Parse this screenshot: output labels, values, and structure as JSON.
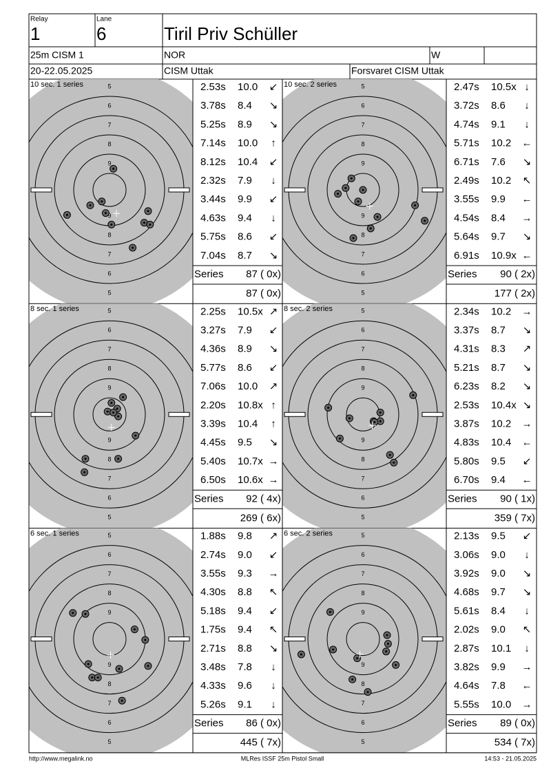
{
  "header": {
    "relay_label": "Relay",
    "relay": "1",
    "lane_label": "Lane",
    "lane": "6",
    "name": "Tiril Priv Schüller",
    "event": "25m CISM 1",
    "nation": "NOR",
    "gender": "W",
    "dates": "20-22.05.2025",
    "competition": "CISM Uttak",
    "club": "Forsvaret CISM Uttak"
  },
  "target": {
    "ring_labels": [
      "9",
      "8",
      "7",
      "6",
      "5"
    ]
  },
  "series_label": "Series",
  "panels": [
    {
      "title": "10 sec. 1 series",
      "times": [
        "2.53s",
        "3.78s",
        "5.25s",
        "7.14s",
        "8.12s",
        "2.32s",
        "3.44s",
        "4.63s",
        "5.75s",
        "7.04s"
      ],
      "scores": [
        "10.0",
        "8.4",
        "8.9",
        "10.0",
        "10.4",
        "7.9",
        "9.9",
        "9.4",
        "8.6",
        "8.7"
      ],
      "dirs": [
        "↙",
        "↘",
        "↘",
        "↑",
        "↙",
        "↓",
        "↙",
        "↓",
        "↙",
        "↘"
      ],
      "series": "87 ( 0x)",
      "total": "87 ( 0x)",
      "shots_x": [
        0.2,
        -1.0,
        -0.4,
        -0.2,
        -2.2,
        0.1,
        2.0,
        1.8,
        2.1,
        1.2
      ],
      "shots_y": [
        -1.1,
        0.8,
        0.6,
        1.2,
        1.3,
        1.8,
        1.1,
        1.7,
        1.8,
        3.0
      ]
    },
    {
      "title": "10 sec. 2 series",
      "times": [
        "2.47s",
        "3.72s",
        "4.74s",
        "5.71s",
        "6.71s",
        "2.49s",
        "3.55s",
        "4.54s",
        "5.64s",
        "6.91s"
      ],
      "scores": [
        "10.5x",
        "8.6",
        "9.1",
        "10.2",
        "7.6",
        "10.2",
        "9.9",
        "8.4",
        "9.7",
        "10.9x"
      ],
      "dirs": [
        "↓",
        "↓",
        "↓",
        "←",
        "↘",
        "↖",
        "←",
        "→",
        "↘",
        "←"
      ],
      "series": "90 ( 2x)",
      "total": "177 ( 2x)",
      "shots_x": [
        -0.6,
        -0.9,
        -1.3,
        0,
        -0.25,
        0.75,
        0.4,
        -0.5,
        2.7,
        3.2
      ],
      "shots_y": [
        -0.6,
        -0.1,
        0.2,
        0,
        0.6,
        1.4,
        2.0,
        2.5,
        0.8,
        1.6
      ]
    },
    {
      "title": "8 sec. 1 series",
      "times": [
        "2.25s",
        "3.27s",
        "4.36s",
        "5.77s",
        "7.06s",
        "2.20s",
        "3.39s",
        "4.45s",
        "5.40s",
        "6.50s"
      ],
      "scores": [
        "10.5x",
        "7.9",
        "8.9",
        "8.6",
        "10.0",
        "10.8x",
        "10.4",
        "9.5",
        "10.7x",
        "10.6x"
      ],
      "dirs": [
        "↗",
        "↙",
        "↘",
        "↙",
        "↗",
        "↑",
        "↑",
        "↘",
        "→",
        "→"
      ],
      "series": "92 ( 4x)",
      "total": "269 ( 6x)",
      "shots_x": [
        0.7,
        0.1,
        0.4,
        -0.1,
        0.45,
        0.2,
        1.35,
        0.45,
        -1.25,
        -1.3
      ],
      "shots_y": [
        -0.9,
        -0.6,
        -0.3,
        -0.15,
        0.1,
        -0.1,
        1.1,
        2.3,
        2.3,
        3.0
      ]
    },
    {
      "title": "8 sec. 2 series",
      "times": [
        "2.34s",
        "3.37s",
        "4.31s",
        "5.21s",
        "6.23s",
        "2.53s",
        "3.87s",
        "4.83s",
        "5.80s",
        "6.70s"
      ],
      "scores": [
        "10.2",
        "8.7",
        "8.3",
        "8.7",
        "8.2",
        "10.4x",
        "10.2",
        "10.4",
        "9.5",
        "9.4"
      ],
      "dirs": [
        "→",
        "↘",
        "↗",
        "↘",
        "↘",
        "↘",
        "→",
        "←",
        "↙",
        "←"
      ],
      "series": "90 ( 1x)",
      "total": "359 ( 7x)",
      "shots_x": [
        -1.8,
        -0.7,
        -1.2,
        0.55,
        0.9,
        0.9,
        2.6,
        1.4,
        1.6,
        0.6
      ],
      "shots_y": [
        -0.35,
        0.2,
        1.25,
        0.35,
        -0.1,
        0.35,
        -1.0,
        2.1,
        2.5,
        0.4
      ]
    },
    {
      "title": "6 sec. 1 series",
      "times": [
        "1.88s",
        "2.74s",
        "3.55s",
        "4.30s",
        "5.18s",
        "1.75s",
        "2.71s",
        "3.48s",
        "4.33s",
        "5.26s"
      ],
      "scores": [
        "9.8",
        "9.0",
        "9.3",
        "8.8",
        "9.4",
        "9.4",
        "8.8",
        "7.8",
        "9.6",
        "9.1"
      ],
      "dirs": [
        "↗",
        "↙",
        "→",
        "↖",
        "↙",
        "↖",
        "↘",
        "↓",
        "↓",
        "↓"
      ],
      "series": "86 ( 0x)",
      "total": "445 ( 7x)",
      "shots_x": [
        -1.9,
        -1.25,
        1.3,
        1.85,
        -1.1,
        0.5,
        2.0,
        -0.9,
        -0.6,
        0.65
      ],
      "shots_y": [
        -1.35,
        -1.3,
        -0.5,
        0.05,
        1.3,
        1.55,
        1.4,
        2.0,
        2.0,
        3.2
      ]
    },
    {
      "title": "6 sec. 2 series",
      "times": [
        "2.13s",
        "3.06s",
        "3.92s",
        "4.68s",
        "5.61s",
        "2.02s",
        "2.87s",
        "3.82s",
        "4.64s",
        "5.55s"
      ],
      "scores": [
        "9.5",
        "9.0",
        "9.0",
        "9.7",
        "8.4",
        "9.0",
        "10.1",
        "9.9",
        "7.8",
        "10.0"
      ],
      "dirs": [
        "↙",
        "↓",
        "↘",
        "↘",
        "↓",
        "↖",
        "↓",
        "→",
        "←",
        "→"
      ],
      "series": "89 ( 0x)",
      "total": "534 ( 7x)",
      "shots_x": [
        -1.7,
        1.25,
        1.3,
        1.2,
        -0.3,
        -1.55,
        -3.2,
        1.7,
        -0.55,
        0.25
      ],
      "shots_y": [
        -1.4,
        -0.2,
        0.25,
        0.65,
        1.0,
        0.55,
        0.8,
        1.35,
        2.1,
        2.75
      ]
    }
  ],
  "footer": {
    "url": "http://www.megalink.no",
    "software": "MLRes ISSF 25m Pistol Small",
    "timestamp": "14:53 - 21.05.2025"
  }
}
